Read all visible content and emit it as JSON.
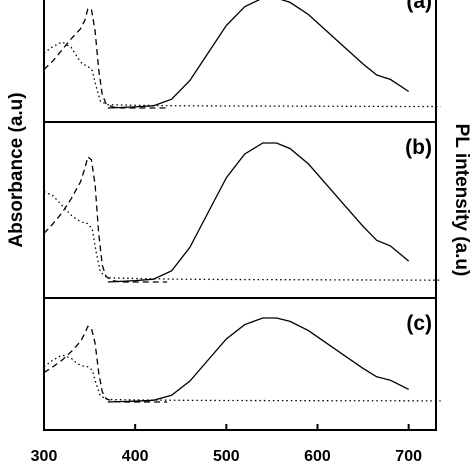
{
  "chart_data": {
    "type": "line",
    "ylabel_left": "Absorbance (a.u)",
    "ylabel_right": "PL intensity (a.u)",
    "xlim": [
      300,
      730
    ],
    "x_ticks": [
      "300",
      "400",
      "500",
      "600",
      "700"
    ],
    "x_tick_values": [
      300,
      400,
      500,
      600,
      700
    ],
    "grid": false,
    "panels": [
      {
        "label": "(a)",
        "series": [
          {
            "style": "dashed",
            "points": [
              [
                300,
                0.35
              ],
              [
                310,
                0.43
              ],
              [
                320,
                0.53
              ],
              [
                330,
                0.63
              ],
              [
                340,
                0.72
              ],
              [
                345,
                0.8
              ],
              [
                348,
                0.9
              ],
              [
                352,
                0.9
              ],
              [
                356,
                0.7
              ],
              [
                360,
                0.35
              ],
              [
                364,
                0.12
              ],
              [
                368,
                0.04
              ],
              [
                375,
                0.01
              ],
              [
                385,
                0.0
              ],
              [
                420,
                0.0
              ],
              [
                435,
                0.0
              ]
            ]
          },
          {
            "style": "dotted",
            "points": [
              [
                300,
                0.5
              ],
              [
                310,
                0.56
              ],
              [
                320,
                0.6
              ],
              [
                330,
                0.55
              ],
              [
                336,
                0.47
              ],
              [
                342,
                0.4
              ],
              [
                348,
                0.38
              ],
              [
                353,
                0.34
              ],
              [
                357,
                0.2
              ],
              [
                362,
                0.06
              ],
              [
                370,
                0.03
              ],
              [
                400,
                0.025
              ],
              [
                450,
                0.02
              ],
              [
                500,
                0.018
              ],
              [
                600,
                0.016
              ],
              [
                700,
                0.014
              ],
              [
                735,
                0.013
              ]
            ]
          },
          {
            "style": "solid",
            "points": [
              [
                370,
                0.0
              ],
              [
                400,
                0.01
              ],
              [
                420,
                0.02
              ],
              [
                440,
                0.08
              ],
              [
                460,
                0.25
              ],
              [
                480,
                0.5
              ],
              [
                500,
                0.75
              ],
              [
                520,
                0.92
              ],
              [
                540,
                1.0
              ],
              [
                555,
                1.0
              ],
              [
                570,
                0.96
              ],
              [
                590,
                0.85
              ],
              [
                610,
                0.7
              ],
              [
                630,
                0.55
              ],
              [
                650,
                0.4
              ],
              [
                665,
                0.3
              ],
              [
                680,
                0.26
              ],
              [
                700,
                0.15
              ]
            ]
          }
        ]
      },
      {
        "label": "(b)",
        "series": [
          {
            "style": "dashed",
            "points": [
              [
                300,
                0.35
              ],
              [
                310,
                0.42
              ],
              [
                320,
                0.5
              ],
              [
                330,
                0.6
              ],
              [
                340,
                0.72
              ],
              [
                345,
                0.82
              ],
              [
                348,
                0.9
              ],
              [
                352,
                0.88
              ],
              [
                356,
                0.7
              ],
              [
                360,
                0.35
              ],
              [
                364,
                0.12
              ],
              [
                368,
                0.04
              ],
              [
                375,
                0.01
              ],
              [
                385,
                0.0
              ],
              [
                420,
                0.0
              ],
              [
                435,
                0.0
              ]
            ]
          },
          {
            "style": "dotted",
            "points": [
              [
                300,
                0.65
              ],
              [
                310,
                0.62
              ],
              [
                320,
                0.55
              ],
              [
                330,
                0.48
              ],
              [
                336,
                0.45
              ],
              [
                342,
                0.43
              ],
              [
                348,
                0.42
              ],
              [
                353,
                0.38
              ],
              [
                357,
                0.22
              ],
              [
                362,
                0.07
              ],
              [
                370,
                0.03
              ],
              [
                400,
                0.025
              ],
              [
                450,
                0.02
              ],
              [
                500,
                0.018
              ],
              [
                600,
                0.016
              ],
              [
                700,
                0.014
              ],
              [
                735,
                0.013
              ]
            ]
          },
          {
            "style": "solid",
            "points": [
              [
                370,
                0.0
              ],
              [
                400,
                0.01
              ],
              [
                420,
                0.02
              ],
              [
                440,
                0.08
              ],
              [
                460,
                0.25
              ],
              [
                480,
                0.5
              ],
              [
                500,
                0.75
              ],
              [
                520,
                0.92
              ],
              [
                540,
                1.0
              ],
              [
                555,
                1.0
              ],
              [
                570,
                0.96
              ],
              [
                590,
                0.85
              ],
              [
                610,
                0.7
              ],
              [
                630,
                0.55
              ],
              [
                650,
                0.4
              ],
              [
                665,
                0.3
              ],
              [
                680,
                0.26
              ],
              [
                700,
                0.15
              ]
            ]
          }
        ]
      },
      {
        "label": "(c)",
        "series": [
          {
            "style": "dashed",
            "points": [
              [
                300,
                0.35
              ],
              [
                310,
                0.42
              ],
              [
                320,
                0.5
              ],
              [
                330,
                0.6
              ],
              [
                340,
                0.72
              ],
              [
                345,
                0.82
              ],
              [
                348,
                0.9
              ],
              [
                352,
                0.88
              ],
              [
                356,
                0.7
              ],
              [
                360,
                0.35
              ],
              [
                364,
                0.12
              ],
              [
                368,
                0.04
              ],
              [
                375,
                0.01
              ],
              [
                385,
                0.0
              ],
              [
                420,
                0.0
              ],
              [
                435,
                0.0
              ]
            ]
          },
          {
            "style": "dotted",
            "points": [
              [
                300,
                0.42
              ],
              [
                310,
                0.5
              ],
              [
                320,
                0.56
              ],
              [
                330,
                0.52
              ],
              [
                336,
                0.46
              ],
              [
                342,
                0.43
              ],
              [
                348,
                0.42
              ],
              [
                353,
                0.38
              ],
              [
                357,
                0.22
              ],
              [
                362,
                0.07
              ],
              [
                370,
                0.03
              ],
              [
                400,
                0.025
              ],
              [
                450,
                0.02
              ],
              [
                500,
                0.018
              ],
              [
                600,
                0.016
              ],
              [
                700,
                0.014
              ],
              [
                735,
                0.013
              ]
            ]
          },
          {
            "style": "solid",
            "points": [
              [
                370,
                0.0
              ],
              [
                400,
                0.01
              ],
              [
                420,
                0.02
              ],
              [
                440,
                0.08
              ],
              [
                460,
                0.25
              ],
              [
                480,
                0.5
              ],
              [
                500,
                0.75
              ],
              [
                520,
                0.92
              ],
              [
                540,
                1.0
              ],
              [
                555,
                1.0
              ],
              [
                570,
                0.96
              ],
              [
                590,
                0.85
              ],
              [
                610,
                0.7
              ],
              [
                630,
                0.55
              ],
              [
                650,
                0.4
              ],
              [
                665,
                0.3
              ],
              [
                680,
                0.26
              ],
              [
                700,
                0.15
              ]
            ]
          }
        ]
      }
    ]
  }
}
